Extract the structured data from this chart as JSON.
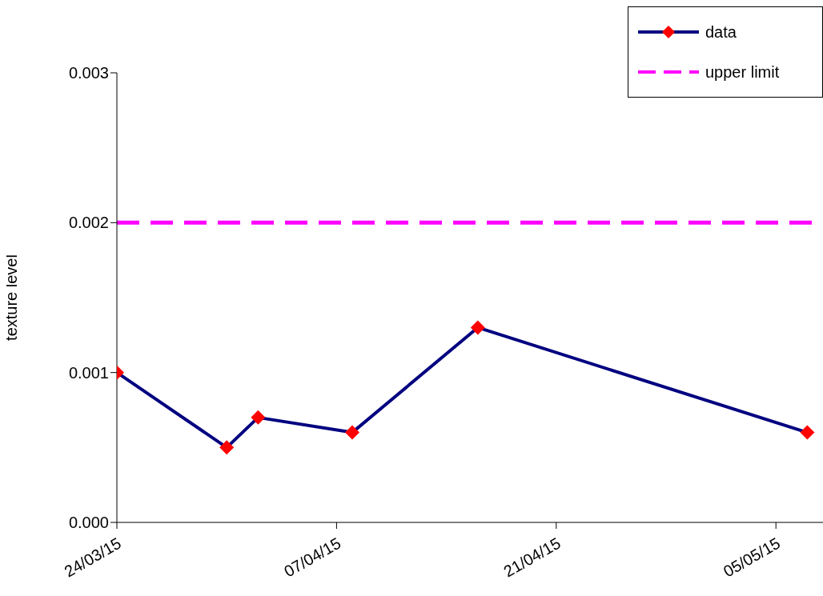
{
  "chart_data": {
    "type": "line",
    "ylabel": "texture level",
    "x": [
      "2015-03-24",
      "2015-03-31",
      "2015-04-02",
      "2015-04-08",
      "2015-04-16",
      "2015-05-07"
    ],
    "series": [
      {
        "name": "data",
        "color": "#000080",
        "values": [
          0.001,
          0.0005,
          0.0007,
          0.0006,
          0.0013,
          0.0006
        ],
        "colors": [
          "#ff0000",
          "#ff0000",
          "#ff0000",
          "#ff0000",
          "#ff0000",
          "#ff0000"
        ]
      }
    ],
    "ref_lines": [
      {
        "axis": "y",
        "value": 0.002,
        "label": "upper limit",
        "color": "#ff00ff",
        "line_style": "dashed"
      }
    ],
    "xlim": [
      "2015-03-24",
      "2015-05-08"
    ],
    "xticks": [
      {
        "value": "2015-03-24",
        "label": "24/03/15"
      },
      {
        "value": "2015-04-07",
        "label": "07/04/15"
      },
      {
        "value": "2015-04-21",
        "label": "21/04/15"
      },
      {
        "value": "2015-05-05",
        "label": "05/05/15"
      }
    ],
    "ylim": [
      0,
      0.003
    ],
    "yticks": [
      {
        "value": 0,
        "label": "0.000"
      },
      {
        "value": 0.001,
        "label": "0.001"
      },
      {
        "value": 0.002,
        "label": "0.002"
      },
      {
        "value": 0.003,
        "label": "0.003"
      }
    ],
    "legend": "top right",
    "grid": false,
    "marker": "diamond"
  }
}
